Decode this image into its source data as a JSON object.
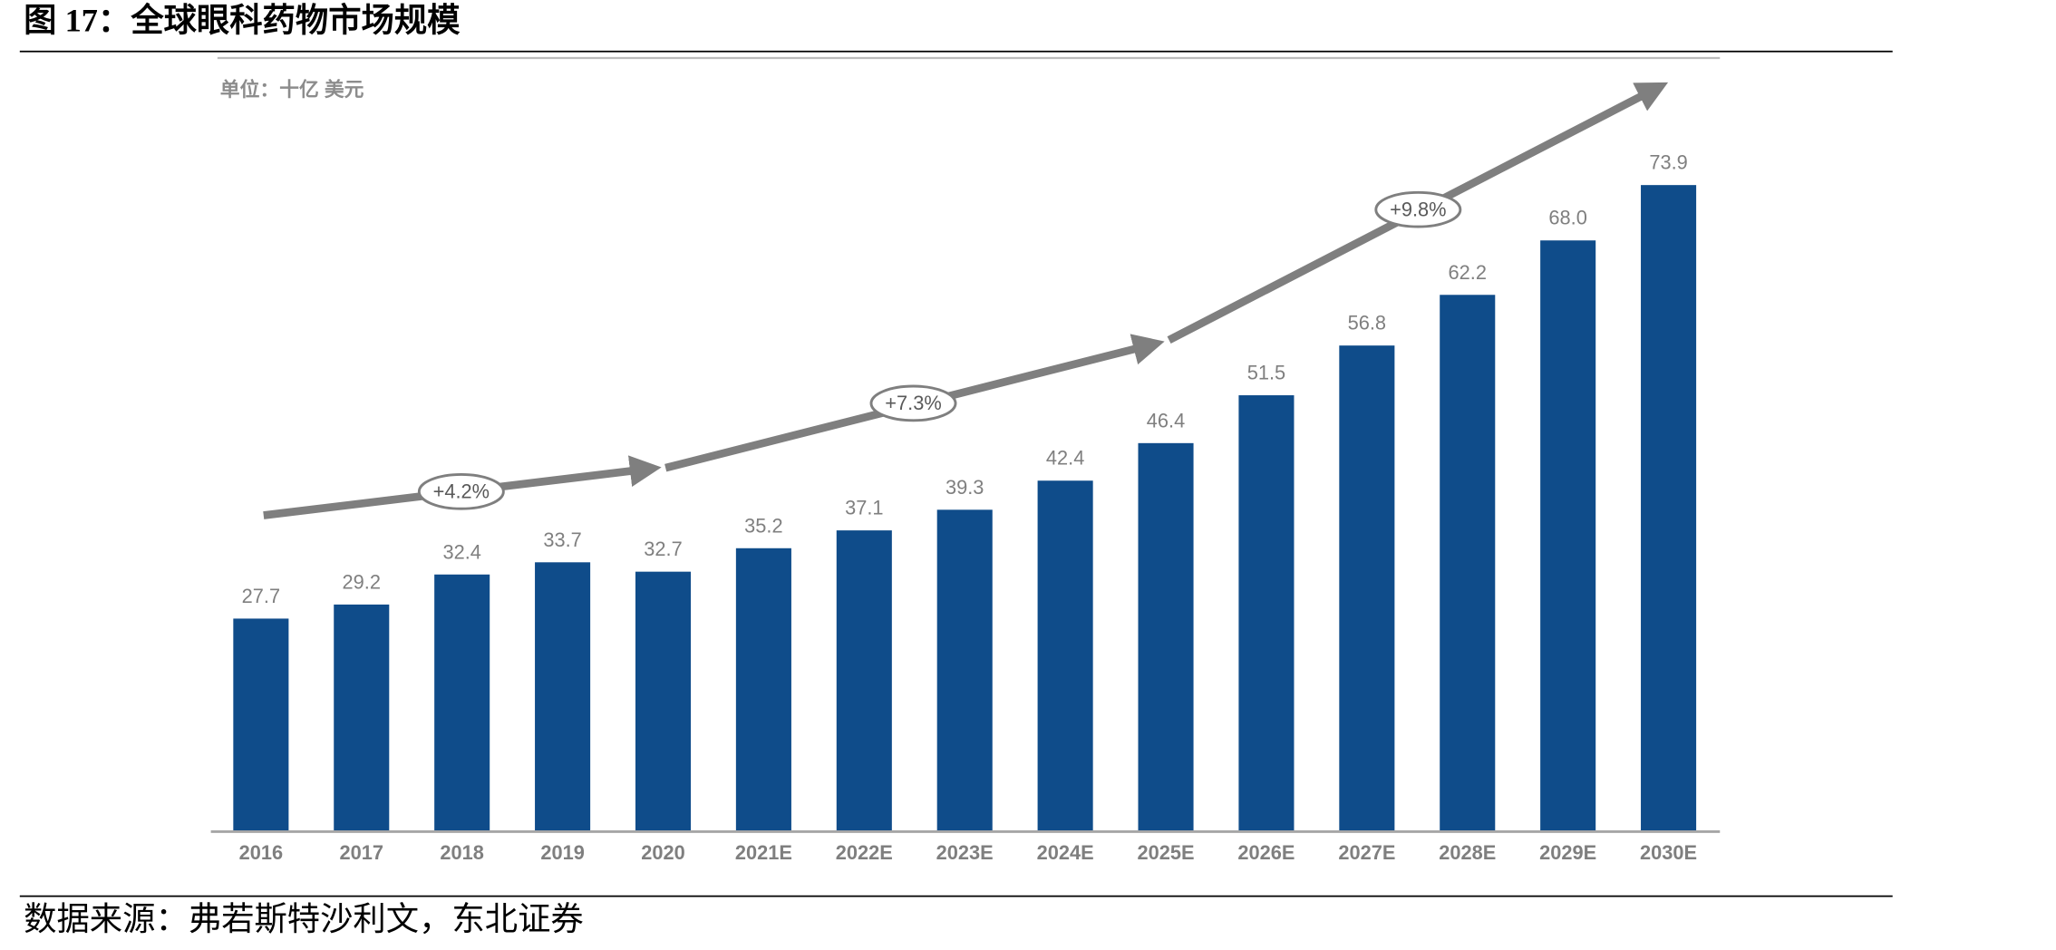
{
  "header": {
    "title": "图 17：全球眼科药物市场规模"
  },
  "chart_data": {
    "type": "bar",
    "unit_label": "单位：十亿 美元",
    "categories": [
      "2016",
      "2017",
      "2018",
      "2019",
      "2020",
      "2021E",
      "2022E",
      "2023E",
      "2024E",
      "2025E",
      "2026E",
      "2027E",
      "2028E",
      "2029E",
      "2030E"
    ],
    "values": [
      27.7,
      29.2,
      32.4,
      33.7,
      32.7,
      35.2,
      37.1,
      39.3,
      42.4,
      46.4,
      51.5,
      56.8,
      62.2,
      68.0,
      73.9
    ],
    "value_labels": [
      "27.7",
      "29.2",
      "32.4",
      "33.7",
      "32.7",
      "35.2",
      "37.1",
      "39.3",
      "42.4",
      "46.4",
      "51.5",
      "56.8",
      "62.2",
      "68.0",
      "73.9"
    ],
    "color": "#0f4c8a",
    "ylim": [
      5,
      88
    ],
    "annotations": [
      "+4.2%",
      "+7.3%",
      "+9.8%"
    ]
  },
  "footer": {
    "source": "数据来源：弗若斯特沙利文，东北证券"
  }
}
